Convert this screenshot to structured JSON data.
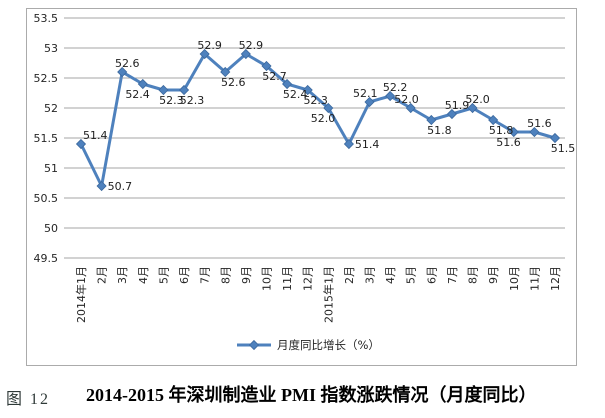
{
  "figure": {
    "label": "图 12",
    "title": "2014-2015 年深圳制造业 PMI 指数涨跌情况（月度同比）"
  },
  "chart_data": {
    "type": "line",
    "title": "",
    "xlabel": "",
    "ylabel": "",
    "categories": [
      "2014年1月",
      "2月",
      "3月",
      "4月",
      "5月",
      "6月",
      "7月",
      "8月",
      "9月",
      "10月",
      "11月",
      "12月",
      "2015年1月",
      "2月",
      "3月",
      "4月",
      "5月",
      "6月",
      "7月",
      "8月",
      "9月",
      "10月",
      "11月",
      "12月"
    ],
    "series": [
      {
        "name": "月度同比增长（%）",
        "values": [
          51.4,
          50.7,
          52.6,
          52.4,
          52.3,
          52.3,
          52.9,
          52.6,
          52.9,
          52.7,
          52.4,
          52.3,
          52.0,
          51.4,
          52.1,
          52.2,
          52.0,
          51.8,
          51.9,
          52.0,
          51.8,
          51.6,
          51.6,
          51.5
        ]
      }
    ],
    "data_labels_shown": true,
    "data_label_positions": [
      "above-right",
      "right",
      "above",
      "below-left",
      "below",
      "below",
      "above",
      "below",
      "above",
      "below",
      "below",
      "below",
      "below-left",
      "right",
      "above-left",
      "above",
      "above-left",
      "below",
      "above",
      "above",
      "below",
      "below-left",
      "above",
      "below"
    ],
    "ylim": [
      49.5,
      53.5
    ],
    "y_ticks": [
      53.5,
      53,
      52.5,
      52,
      51.5,
      51,
      50.5,
      50,
      49.5
    ],
    "grid": true,
    "legend": {
      "label": "月度同比增长（%）",
      "position": "bottom"
    },
    "colors": {
      "line": "#4E81BD",
      "marker_fill": "#4E81BD",
      "marker_edge": "#3A679C",
      "grid": "#a6a6a6",
      "axis_text": "#262626",
      "data_label_text": "#1f1f1f",
      "chart_border": "#ababab"
    }
  }
}
